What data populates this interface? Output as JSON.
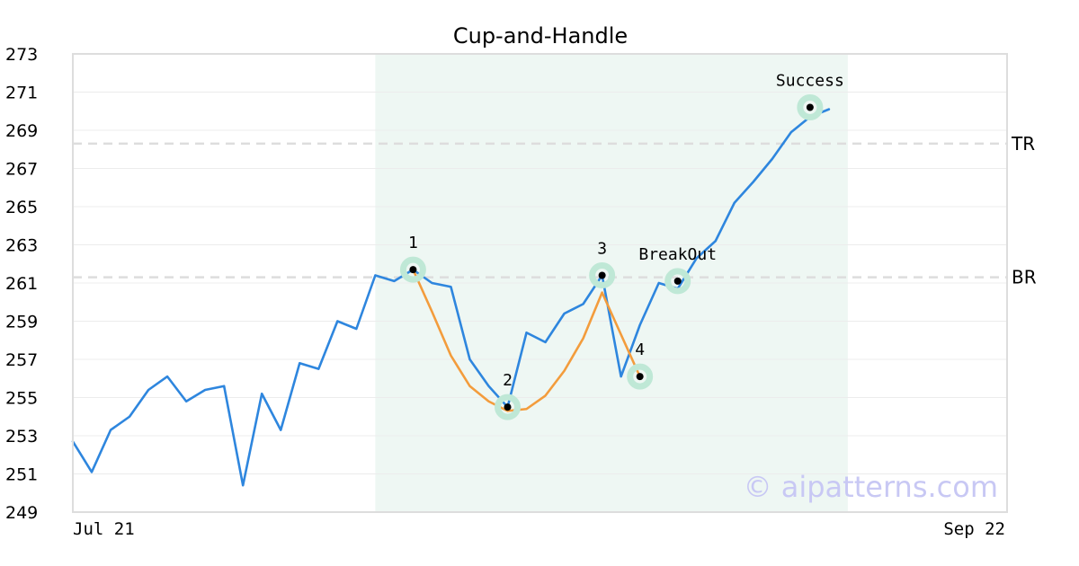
{
  "chart_data": {
    "type": "line",
    "title": "Cup-and-Handle",
    "xlabel": "",
    "ylabel": "",
    "ylim": [
      249,
      273
    ],
    "yticks": [
      249,
      251,
      253,
      255,
      257,
      259,
      261,
      263,
      265,
      267,
      269,
      271,
      273
    ],
    "xtick_labels": [
      "Jul 21",
      "Sep 22"
    ],
    "grid": "horizontal",
    "x_count": 46,
    "series": [
      {
        "color": "#2e86de",
        "values": [
          252.7,
          251.1,
          253.3,
          254.0,
          255.4,
          256.1,
          254.8,
          255.4,
          255.6,
          250.4,
          255.2,
          253.3,
          256.8,
          256.5,
          259.0,
          258.6,
          261.4,
          261.1,
          261.7,
          261.0,
          260.8,
          257.0,
          255.6,
          254.5,
          258.4,
          257.9,
          259.4,
          259.9,
          261.4,
          256.1,
          258.8,
          261.0,
          260.7,
          262.3,
          263.2,
          265.2,
          266.3,
          267.5,
          268.9,
          269.7,
          270.1
        ]
      },
      {
        "color": "#f39c3c",
        "start_index": 18,
        "values": [
          261.7,
          259.5,
          257.2,
          255.6,
          254.8,
          254.3,
          254.4,
          255.1,
          256.4,
          258.1,
          260.5,
          258.3,
          256.1
        ]
      }
    ],
    "highlight_region": {
      "x_start": 16,
      "x_end": 41,
      "color": "#eef7f3"
    },
    "reference_lines": [
      {
        "label": "TR",
        "value": 268.3,
        "color": "#dddddd"
      },
      {
        "label": "BR",
        "value": 261.3,
        "color": "#dddddd"
      }
    ],
    "markers": [
      {
        "label": "1",
        "x": 18,
        "y": 261.7,
        "label_pos": "above"
      },
      {
        "label": "2",
        "x": 23,
        "y": 254.5,
        "label_pos": "above"
      },
      {
        "label": "3",
        "x": 28,
        "y": 261.4,
        "label_pos": "above"
      },
      {
        "label": "4",
        "x": 30,
        "y": 256.1,
        "label_pos": "above"
      },
      {
        "label": "BreakOut",
        "x": 32,
        "y": 261.1,
        "label_pos": "above"
      },
      {
        "label": "Success",
        "x": 39,
        "y": 270.2,
        "label_pos": "above"
      }
    ],
    "watermark": "© aipatterns.com"
  }
}
